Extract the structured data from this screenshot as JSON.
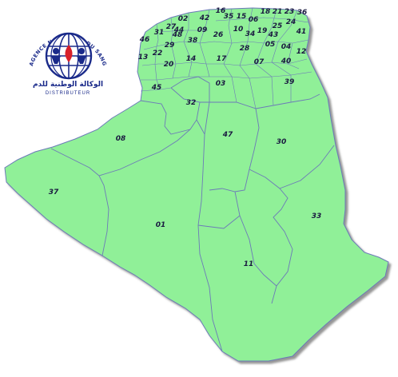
{
  "colors": {
    "land": "#90f098",
    "border": "#6c7ab8",
    "shadow": "#9a9a9a",
    "label": "#1a1a40",
    "logo_blue": "#1a2a8a",
    "logo_red": "#d8202a"
  },
  "logo": {
    "arc_text": "AGENCE NATIONALE DU SANG",
    "arabic_text": "الوكالة الوطنية للدم",
    "sub_text": "DISTRIBUTEUR"
  },
  "regions": [
    {
      "code": "16"
    },
    {
      "code": "35"
    },
    {
      "code": "15"
    },
    {
      "code": "06"
    },
    {
      "code": "18"
    },
    {
      "code": "21"
    },
    {
      "code": "23"
    },
    {
      "code": "36"
    },
    {
      "code": "02"
    },
    {
      "code": "42"
    },
    {
      "code": "09"
    },
    {
      "code": "10"
    },
    {
      "code": "34"
    },
    {
      "code": "19"
    },
    {
      "code": "43"
    },
    {
      "code": "25"
    },
    {
      "code": "24"
    },
    {
      "code": "41"
    },
    {
      "code": "27"
    },
    {
      "code": "44"
    },
    {
      "code": "26"
    },
    {
      "code": "31"
    },
    {
      "code": "46"
    },
    {
      "code": "48"
    },
    {
      "code": "38"
    },
    {
      "code": "29"
    },
    {
      "code": "22"
    },
    {
      "code": "13"
    },
    {
      "code": "20"
    },
    {
      "code": "14"
    },
    {
      "code": "17"
    },
    {
      "code": "28"
    },
    {
      "code": "05"
    },
    {
      "code": "04"
    },
    {
      "code": "40"
    },
    {
      "code": "12"
    },
    {
      "code": "07"
    },
    {
      "code": "45"
    },
    {
      "code": "03"
    },
    {
      "code": "39"
    },
    {
      "code": "32"
    },
    {
      "code": "47"
    },
    {
      "code": "30"
    },
    {
      "code": "08"
    },
    {
      "code": "37"
    },
    {
      "code": "01"
    },
    {
      "code": "33"
    },
    {
      "code": "11"
    }
  ]
}
